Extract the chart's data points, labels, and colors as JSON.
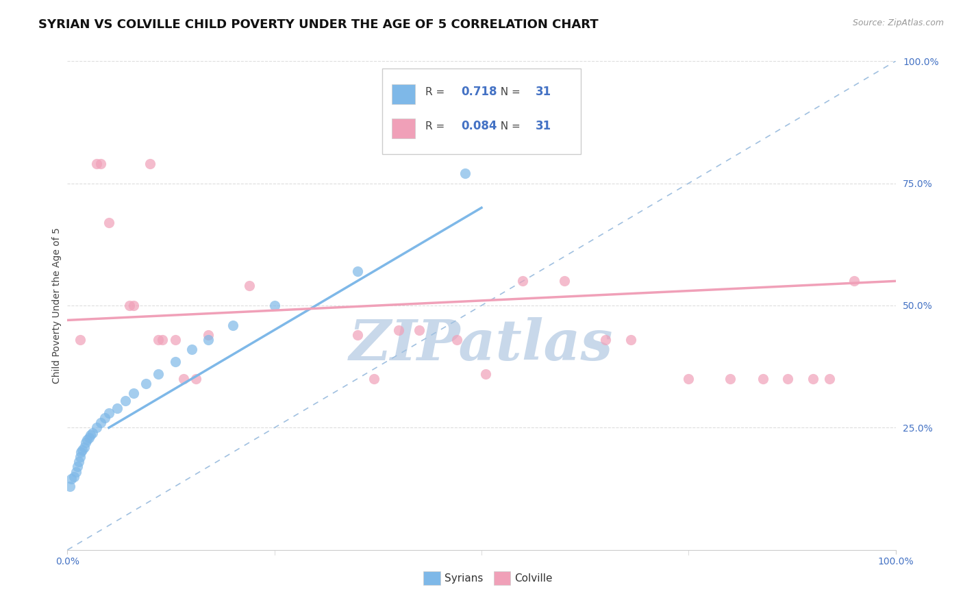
{
  "title": "SYRIAN VS COLVILLE CHILD POVERTY UNDER THE AGE OF 5 CORRELATION CHART",
  "source": "Source: ZipAtlas.com",
  "ylabel": "Child Poverty Under the Age of 5",
  "legend_syrian_R": "0.718",
  "legend_syrian_N": "31",
  "legend_colville_R": "0.084",
  "legend_colville_N": "31",
  "legend_label_syrian": "Syrians",
  "legend_label_colville": "Colville",
  "syrian_color": "#7eb8e8",
  "colville_color": "#f0a0b8",
  "background_color": "#ffffff",
  "grid_color": "#dddddd",
  "diagonal_color": "#a0c0e0",
  "watermark_text": "ZIPatlas",
  "watermark_color": "#c8d8ea",
  "title_fontsize": 13,
  "axis_label_fontsize": 10,
  "tick_fontsize": 10,
  "value_color": "#4472c4",
  "syrian_x": [
    0.5,
    0.8,
    1.0,
    1.2,
    1.5,
    1.8,
    2.0,
    2.2,
    2.5,
    2.8,
    3.0,
    3.2,
    3.5,
    4.0,
    4.5,
    5.0,
    5.5,
    6.0,
    7.0,
    8.0,
    9.0,
    10.0,
    11.0,
    12.0,
    13.0,
    14.0,
    15.0,
    17.0,
    20.0,
    33.0,
    48.0
  ],
  "syrian_y": [
    14.0,
    15.0,
    16.0,
    17.0,
    18.0,
    19.0,
    20.0,
    21.0,
    22.0,
    22.0,
    23.0,
    24.0,
    24.0,
    25.0,
    26.0,
    27.0,
    27.0,
    28.0,
    29.0,
    30.0,
    32.0,
    33.0,
    35.0,
    36.0,
    37.0,
    39.0,
    40.0,
    42.0,
    45.0,
    54.0,
    77.0
  ],
  "colville_x": [
    1.5,
    3.5,
    3.8,
    5.0,
    6.0,
    7.5,
    8.0,
    10.0,
    10.5,
    11.0,
    13.0,
    13.5,
    17.0,
    22.0,
    35.5,
    37.0,
    42.0,
    45.0,
    48.0,
    50.0,
    55.0,
    60.0,
    65.0,
    70.0,
    75.0,
    80.0,
    85.0,
    87.0,
    90.0,
    92.0,
    95.0
  ],
  "colville_y": [
    43.0,
    79.0,
    79.0,
    66.0,
    49.0,
    49.0,
    79.0,
    43.0,
    43.0,
    43.0,
    35.0,
    35.0,
    44.0,
    54.0,
    43.0,
    35.0,
    45.0,
    45.0,
    43.0,
    35.0,
    54.0,
    54.0,
    43.0,
    43.0,
    35.0,
    35.0,
    35.0,
    35.0,
    35.0,
    35.0,
    55.0
  ]
}
